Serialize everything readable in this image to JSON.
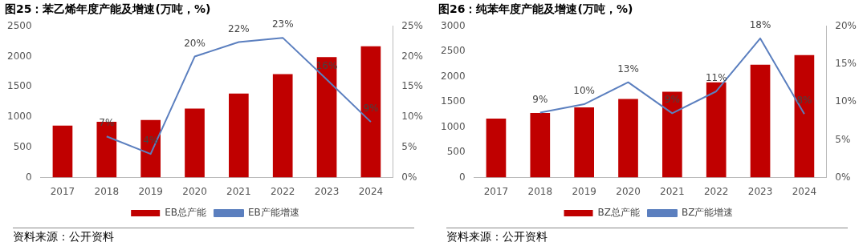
{
  "chart_data": [
    {
      "type": "bar",
      "title": "图25：苯乙烯年度产能及增速(万吨，%)",
      "categories": [
        "2017",
        "2018",
        "2019",
        "2020",
        "2021",
        "2022",
        "2023",
        "2024"
      ],
      "series": [
        {
          "name": "EB总产能",
          "color": "#c00000",
          "values": [
            860,
            920,
            950,
            1140,
            1390,
            1710,
            1990,
            2170
          ]
        },
        {
          "name": "EB产能增速",
          "type": "line",
          "axis": "y2",
          "color": "#5b7fbf",
          "values": [
            null,
            6.8,
            3.9,
            20.0,
            22.4,
            23.1,
            16.2,
            9.2
          ],
          "value_labels": [
            null,
            "7%",
            "4%",
            "20%",
            "22%",
            "23%",
            "16%",
            "9%"
          ]
        }
      ],
      "ylim": [
        0,
        2500
      ],
      "yticks": [
        0,
        500,
        1000,
        1500,
        2000,
        2500
      ],
      "y2lim": [
        0,
        25
      ],
      "y2ticks": [
        {
          "value": 0,
          "label": "0%"
        },
        {
          "value": 5,
          "label": "5%"
        },
        {
          "value": 10,
          "label": "10%"
        },
        {
          "value": 15,
          "label": "15%"
        },
        {
          "value": 20,
          "label": "20%"
        },
        {
          "value": 25,
          "label": "25%"
        }
      ],
      "grid": false,
      "legend": "bottom",
      "marker": "none",
      "annotations": [
        "资料来源：公开资料"
      ]
    },
    {
      "type": "bar",
      "title": "图26：纯苯年度产能及增速(万吨，%)",
      "categories": [
        "2017",
        "2018",
        "2019",
        "2020",
        "2021",
        "2022",
        "2023",
        "2024"
      ],
      "series": [
        {
          "name": "BZ总产能",
          "color": "#c00000",
          "values": [
            1170,
            1280,
            1390,
            1560,
            1700,
            1890,
            2240,
            2430
          ]
        },
        {
          "name": "BZ产能增速",
          "type": "line",
          "axis": "y2",
          "color": "#5b7fbf",
          "values": [
            null,
            8.6,
            9.7,
            12.6,
            8.5,
            11.4,
            18.4,
            8.4
          ],
          "value_labels": [
            null,
            "9%",
            "10%",
            "13%",
            "9%",
            "11%",
            "18%",
            "8%"
          ]
        }
      ],
      "ylim": [
        0,
        3000
      ],
      "yticks": [
        0,
        500,
        1000,
        1500,
        2000,
        2500,
        3000
      ],
      "y2lim": [
        0,
        20
      ],
      "y2ticks": [
        {
          "value": 0,
          "label": "0%"
        },
        {
          "value": 5,
          "label": "5%"
        },
        {
          "value": 10,
          "label": "10%"
        },
        {
          "value": 15,
          "label": "15%"
        },
        {
          "value": 20,
          "label": "20%"
        }
      ],
      "grid": false,
      "legend": "bottom",
      "marker": "none",
      "annotations": [
        "资料来源：公开资料"
      ]
    }
  ]
}
